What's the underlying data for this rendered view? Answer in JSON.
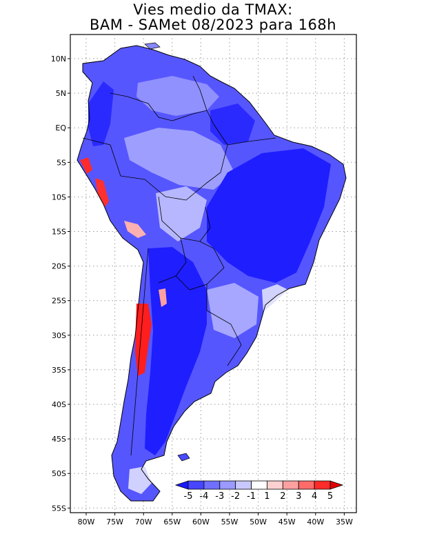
{
  "title_line1": "Vies medio da TMAX:",
  "title_line2": "BAM - SAMet 08/2023  para 168h",
  "lat_labels": [
    "10N",
    "5N",
    "EQ",
    "5S",
    "10S",
    "15S",
    "20S",
    "25S",
    "30S",
    "35S",
    "40S",
    "45S",
    "50S",
    "55S"
  ],
  "lon_labels": [
    "80W",
    "75W",
    "70W",
    "65W",
    "60W",
    "55W",
    "50W",
    "45W",
    "40W",
    "35W"
  ],
  "colorbar": {
    "labels": [
      "-5",
      "-4",
      "-3",
      "-2",
      "-1",
      "1",
      "2",
      "3",
      "4",
      "5"
    ],
    "colors": [
      "#1a1aff",
      "#4646ff",
      "#7070ff",
      "#9a9aff",
      "#c8c8ff",
      "#ffffff",
      "#ffd0d0",
      "#ffa0a0",
      "#ff6a6a",
      "#ff2a2a",
      "#e00000"
    ]
  },
  "colors": {
    "ocean": "#ffffff",
    "deep_blue": "#1e1eff",
    "mid_blue": "#5050ff",
    "light_blue": "#a8a8ff",
    "pale_blue": "#d8d8ff",
    "red": "#ff2020"
  }
}
